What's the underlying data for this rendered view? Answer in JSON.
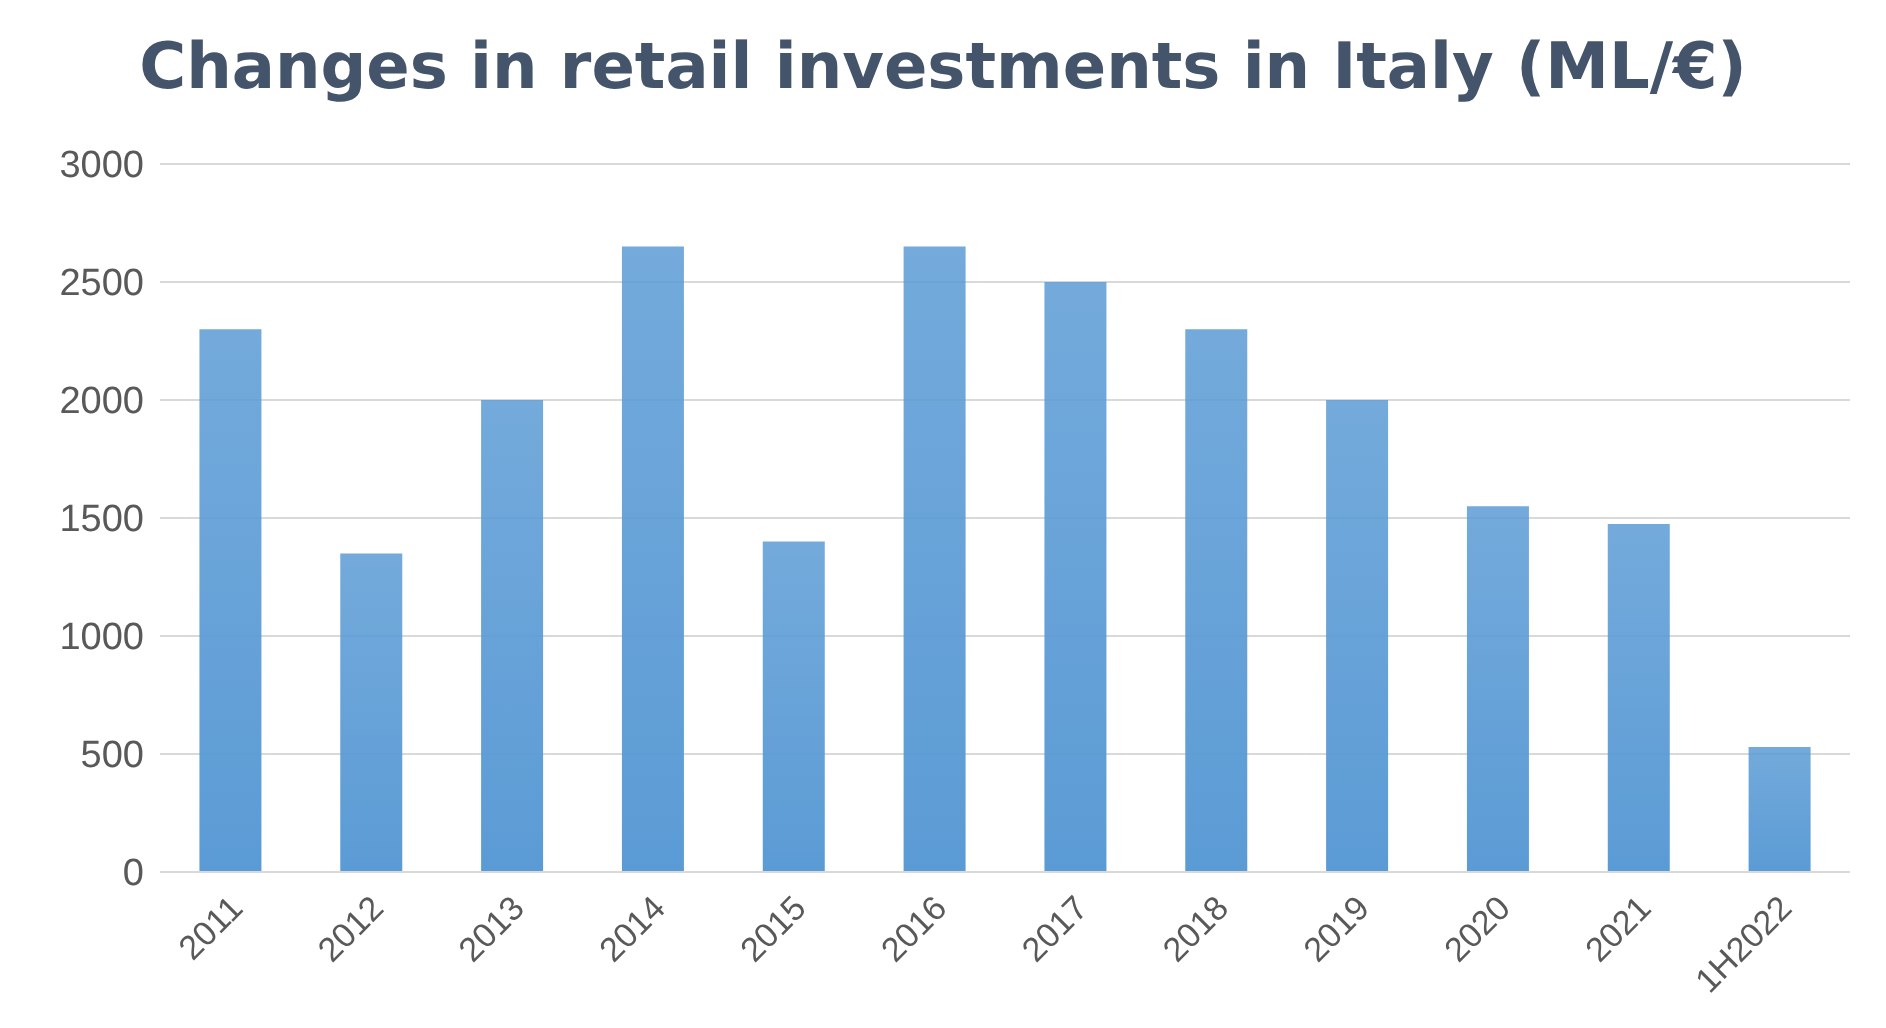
{
  "chart_data": {
    "type": "bar",
    "title": "Changes in retail investments in Italy (ML/€)",
    "categories": [
      "2011",
      "2012",
      "2013",
      "2014",
      "2015",
      "2016",
      "2017",
      "2018",
      "2019",
      "2020",
      "2021",
      "1H2022"
    ],
    "values": [
      2300,
      1350,
      2000,
      2650,
      1400,
      2650,
      2500,
      2300,
      2000,
      1550,
      1475,
      530
    ],
    "color": "#5b9bd5",
    "ylim": [
      0,
      3000
    ],
    "yticks": [
      0,
      500,
      1000,
      1500,
      2000,
      2500,
      3000
    ],
    "grid": "y",
    "legend": false
  }
}
